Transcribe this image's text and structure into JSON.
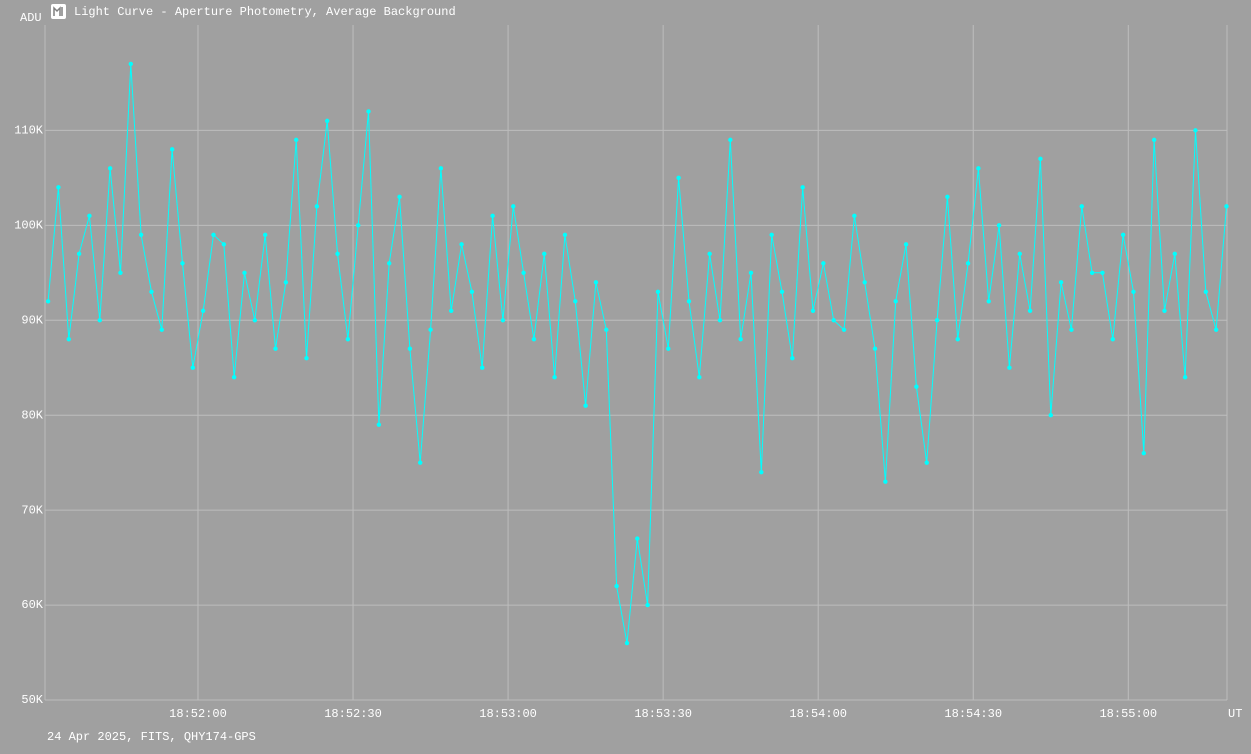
{
  "chart_data": {
    "type": "line",
    "title": "Light Curve - Aperture Photometry, Average Background",
    "ylabel": "ADU",
    "xlabel": "UT",
    "footnote": "24 Apr 2025, FITS, QHY174-GPS",
    "color": "#00ffff",
    "grid": true,
    "xlim": [
      "18:51:30.4",
      "18:55:19.1"
    ],
    "xticks": [
      "18:52:00",
      "18:52:30",
      "18:53:00",
      "18:53:30",
      "18:54:00",
      "18:54:30",
      "18:55:00"
    ],
    "ylim": [
      50000,
      121100
    ],
    "yticks": [
      {
        "value": 50000,
        "label": "50K"
      },
      {
        "value": 60000,
        "label": "60K"
      },
      {
        "value": 70000,
        "label": "70K"
      },
      {
        "value": 80000,
        "label": "80K"
      },
      {
        "value": 90000,
        "label": "90K"
      },
      {
        "value": 100000,
        "label": "100K"
      },
      {
        "value": 110000,
        "label": "110K"
      }
    ],
    "x": [
      "18:51:31",
      "18:51:33",
      "18:51:35",
      "18:51:37",
      "18:51:39",
      "18:51:41",
      "18:51:43",
      "18:51:45",
      "18:51:47",
      "18:51:49",
      "18:51:51",
      "18:51:53",
      "18:51:55",
      "18:51:57",
      "18:51:59",
      "18:52:01",
      "18:52:03",
      "18:52:05",
      "18:52:07",
      "18:52:09",
      "18:52:11",
      "18:52:13",
      "18:52:15",
      "18:52:17",
      "18:52:19",
      "18:52:21",
      "18:52:23",
      "18:52:25",
      "18:52:27",
      "18:52:29",
      "18:52:31",
      "18:52:33",
      "18:52:35",
      "18:52:37",
      "18:52:39",
      "18:52:41",
      "18:52:43",
      "18:52:45",
      "18:52:47",
      "18:52:49",
      "18:52:51",
      "18:52:53",
      "18:52:55",
      "18:52:57",
      "18:52:59",
      "18:53:01",
      "18:53:03",
      "18:53:05",
      "18:53:07",
      "18:53:09",
      "18:53:11",
      "18:53:13",
      "18:53:15",
      "18:53:17",
      "18:53:19",
      "18:53:21",
      "18:53:23",
      "18:53:25",
      "18:53:27",
      "18:53:29",
      "18:53:31",
      "18:53:33",
      "18:53:35",
      "18:53:37",
      "18:53:39",
      "18:53:41",
      "18:53:43",
      "18:53:45",
      "18:53:47",
      "18:53:49",
      "18:53:51",
      "18:53:53",
      "18:53:55",
      "18:53:57",
      "18:53:59",
      "18:54:01",
      "18:54:03",
      "18:54:05",
      "18:54:07",
      "18:54:09",
      "18:54:11",
      "18:54:13",
      "18:54:15",
      "18:54:17",
      "18:54:19",
      "18:54:21",
      "18:54:23",
      "18:54:25",
      "18:54:27",
      "18:54:29",
      "18:54:31",
      "18:54:33",
      "18:54:35",
      "18:54:37",
      "18:54:39",
      "18:54:41",
      "18:54:43",
      "18:54:45",
      "18:54:47",
      "18:54:49",
      "18:54:51",
      "18:54:53",
      "18:54:55",
      "18:54:57",
      "18:54:59",
      "18:55:01",
      "18:55:03",
      "18:55:05",
      "18:55:07",
      "18:55:09",
      "18:55:11",
      "18:55:13",
      "18:55:15",
      "18:55:17",
      "18:55:19"
    ],
    "values": [
      92000,
      104000,
      88000,
      97000,
      101000,
      90000,
      106000,
      95000,
      117000,
      99000,
      93000,
      89000,
      108000,
      96000,
      85000,
      91000,
      99000,
      98000,
      84000,
      95000,
      90000,
      99000,
      87000,
      94000,
      109000,
      86000,
      102000,
      111000,
      97000,
      88000,
      100000,
      112000,
      79000,
      96000,
      103000,
      87000,
      75000,
      89000,
      106000,
      91000,
      98000,
      93000,
      85000,
      101000,
      90000,
      102000,
      95000,
      88000,
      97000,
      84000,
      99000,
      92000,
      81000,
      94000,
      89000,
      62000,
      56000,
      67000,
      60000,
      93000,
      87000,
      105000,
      92000,
      84000,
      97000,
      90000,
      109000,
      88000,
      95000,
      74000,
      99000,
      93000,
      86000,
      104000,
      91000,
      96000,
      90000,
      89000,
      101000,
      94000,
      87000,
      73000,
      92000,
      98000,
      83000,
      75000,
      90000,
      103000,
      88000,
      96000,
      106000,
      92000,
      100000,
      85000,
      97000,
      91000,
      107000,
      80000,
      94000,
      89000,
      102000,
      95000,
      95000,
      88000,
      99000,
      93000,
      76000,
      109000,
      91000,
      97000,
      84000,
      110000,
      93000,
      89000,
      102000
    ]
  }
}
